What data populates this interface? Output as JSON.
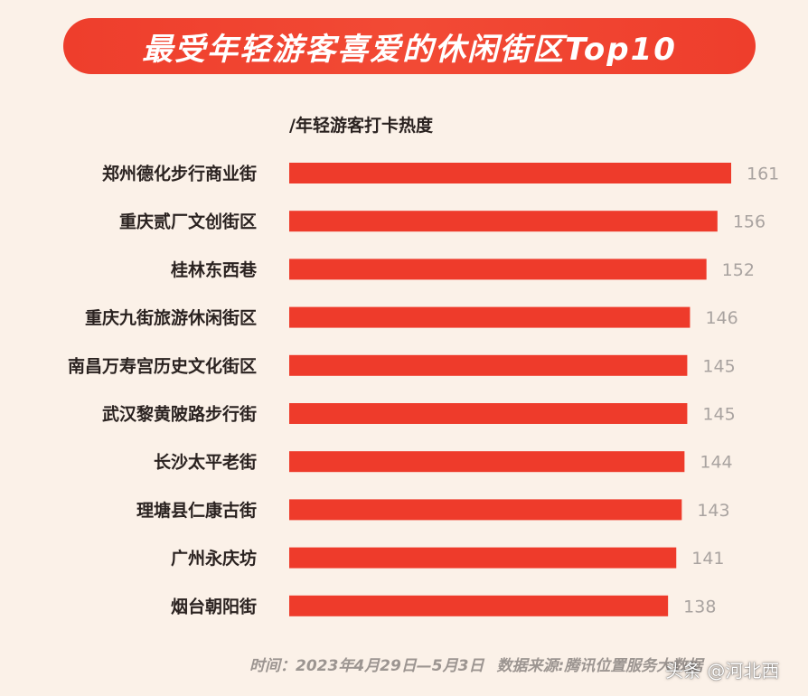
{
  "title": "最受年轻游客喜爱的休闲街区Top10",
  "metric_label": "/年轻游客打卡热度",
  "footer": {
    "time_label": "时间：",
    "time_value": "2023年4月29日—5月3日",
    "source_label": "数据来源:",
    "source_value": "腾讯位置服务大数据"
  },
  "watermark": "头条 @河北西",
  "colors": {
    "background": "#fbf1e8",
    "bar": "#ee3b2b",
    "title_bg": "#ee3e2c",
    "value_text": "#a9a3a0",
    "category_text": "#2a2220"
  },
  "chart_data": {
    "type": "bar",
    "orientation": "horizontal",
    "title": "最受年轻游客喜爱的休闲街区Top10",
    "xlabel": "/年轻游客打卡热度",
    "categories": [
      "郑州德化步行商业街",
      "重庆贰厂文创街区",
      "桂林东西巷",
      "重庆九街旅游休闲街区",
      "南昌万寿宫历史文化街区",
      "武汉黎黄陂路步行街",
      "长沙太平老街",
      "理塘县仁康古街",
      "广州永庆坊",
      "烟台朝阳街"
    ],
    "values": [
      161,
      156,
      152,
      146,
      145,
      145,
      144,
      143,
      141,
      138
    ],
    "grid": false,
    "legend": "none"
  }
}
